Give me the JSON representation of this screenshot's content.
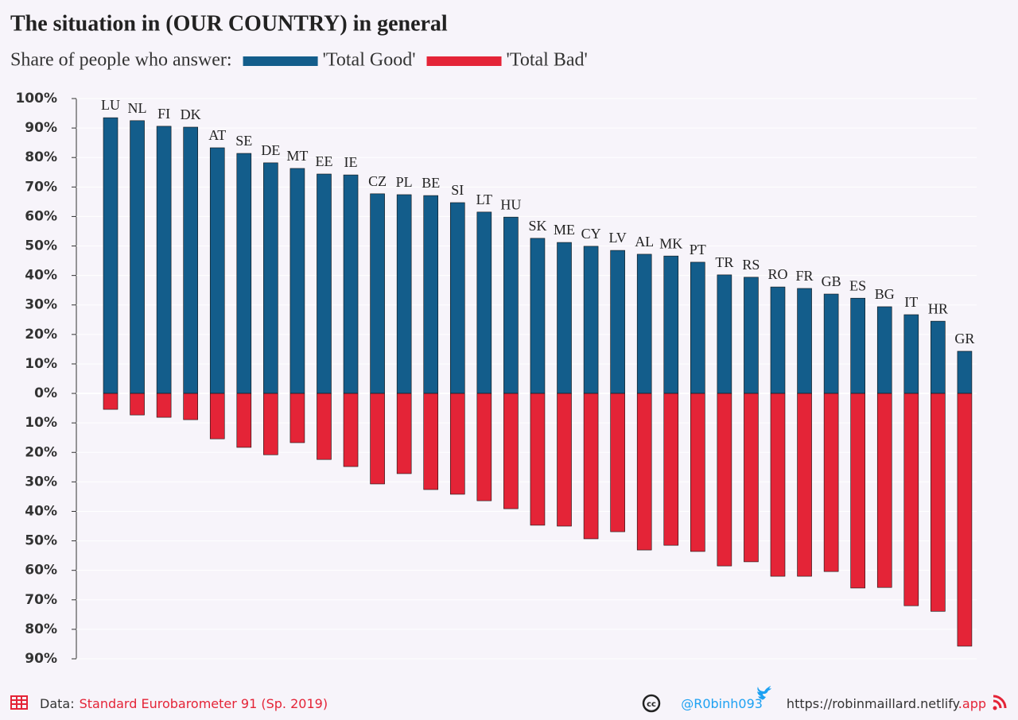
{
  "chart_data": {
    "type": "bar",
    "title": "The situation in (OUR COUNTRY) in general",
    "subtitle": "Share of people who answer:",
    "categories": [
      "LU",
      "NL",
      "FI",
      "DK",
      "AT",
      "SE",
      "DE",
      "MT",
      "EE",
      "IE",
      "CZ",
      "PL",
      "BE",
      "SI",
      "LT",
      "HU",
      "SK",
      "ME",
      "CY",
      "LV",
      "AL",
      "MK",
      "PT",
      "TR",
      "RS",
      "RO",
      "FR",
      "GB",
      "ES",
      "BG",
      "IT",
      "HR",
      "GR"
    ],
    "series": [
      {
        "name": "'Total Good'",
        "color": "#135d8b",
        "values": [
          93.5,
          92.5,
          90.6,
          90.3,
          83.3,
          81.4,
          78.2,
          76.3,
          74.4,
          74.1,
          67.7,
          67.4,
          67.1,
          64.7,
          61.5,
          59.8,
          52.6,
          51.2,
          49.9,
          48.5,
          47.2,
          46.6,
          44.5,
          40.2,
          39.4,
          36.1,
          35.6,
          33.7,
          32.3,
          29.4,
          26.7,
          24.5,
          14.3
        ]
      },
      {
        "name": "'Total Bad'",
        "color": "#e42437",
        "values": [
          -5.4,
          -7.3,
          -8.1,
          -8.9,
          -15.4,
          -18.3,
          -20.8,
          -16.7,
          -22.4,
          -24.8,
          -30.7,
          -27.2,
          -32.6,
          -34.2,
          -36.4,
          -39.1,
          -44.7,
          -45.0,
          -49.3,
          -46.9,
          -53.1,
          -51.5,
          -53.6,
          -58.5,
          -57.1,
          -62.0,
          -62.0,
          -60.4,
          -66.0,
          -65.8,
          -72.0,
          -73.9,
          -85.7
        ]
      }
    ],
    "ylim": [
      -90,
      100
    ],
    "yticks": [
      {
        "value": 100,
        "label": "100%"
      },
      {
        "value": 90,
        "label": "90%"
      },
      {
        "value": 80,
        "label": "80%"
      },
      {
        "value": 70,
        "label": "70%"
      },
      {
        "value": 60,
        "label": "60%"
      },
      {
        "value": 50,
        "label": "50%"
      },
      {
        "value": 40,
        "label": "40%"
      },
      {
        "value": 30,
        "label": "30%"
      },
      {
        "value": 20,
        "label": "20%"
      },
      {
        "value": 10,
        "label": "10%"
      },
      {
        "value": 0,
        "label": "0%"
      },
      {
        "value": -10,
        "label": "10%"
      },
      {
        "value": -20,
        "label": "20%"
      },
      {
        "value": -30,
        "label": "30%"
      },
      {
        "value": -40,
        "label": "40%"
      },
      {
        "value": -50,
        "label": "50%"
      },
      {
        "value": -60,
        "label": "60%"
      },
      {
        "value": -70,
        "label": "70%"
      },
      {
        "value": -80,
        "label": "80%"
      },
      {
        "value": -90,
        "label": "90%"
      }
    ],
    "grid": true,
    "footer": {
      "data_label": "Data:",
      "source": "Standard Eurobarometer 91 (Sp. 2019)",
      "handle": "@R0binh093",
      "url": "https://robinmaillard.netlify",
      "url_suffix": ".app"
    }
  }
}
